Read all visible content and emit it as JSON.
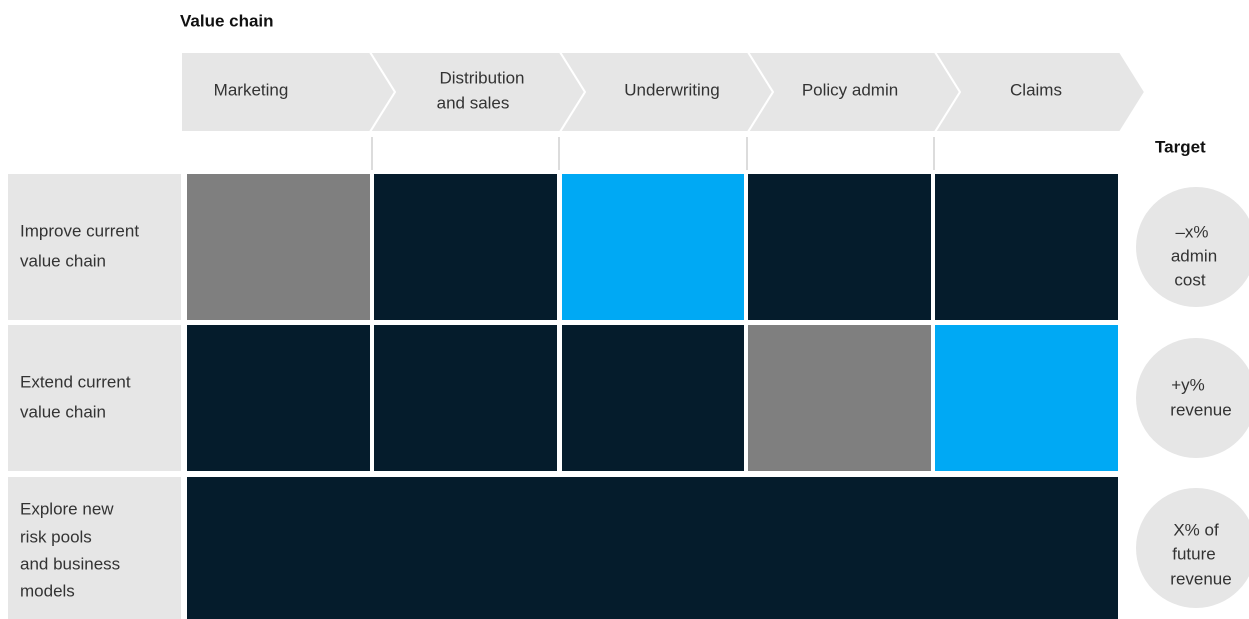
{
  "title": "Value chain",
  "stages": [
    {
      "label": [
        "Marketing"
      ]
    },
    {
      "label": [
        "Distribution",
        "and sales"
      ]
    },
    {
      "label": [
        "Underwriting"
      ]
    },
    {
      "label": [
        "Policy admin"
      ]
    },
    {
      "label": [
        "Claims"
      ]
    }
  ],
  "target_heading": "Target",
  "rows": [
    {
      "label": [
        "Improve current",
        "value chain"
      ],
      "target": [
        "–x%",
        "admin",
        "cost"
      ]
    },
    {
      "label": [
        "Extend current",
        "value chain"
      ],
      "target": [
        "+y%",
        "revenue"
      ]
    },
    {
      "label": [
        "Explore new",
        "risk pools",
        "and business",
        "models"
      ],
      "target": [
        "X% of",
        "future",
        "revenue"
      ]
    }
  ]
}
